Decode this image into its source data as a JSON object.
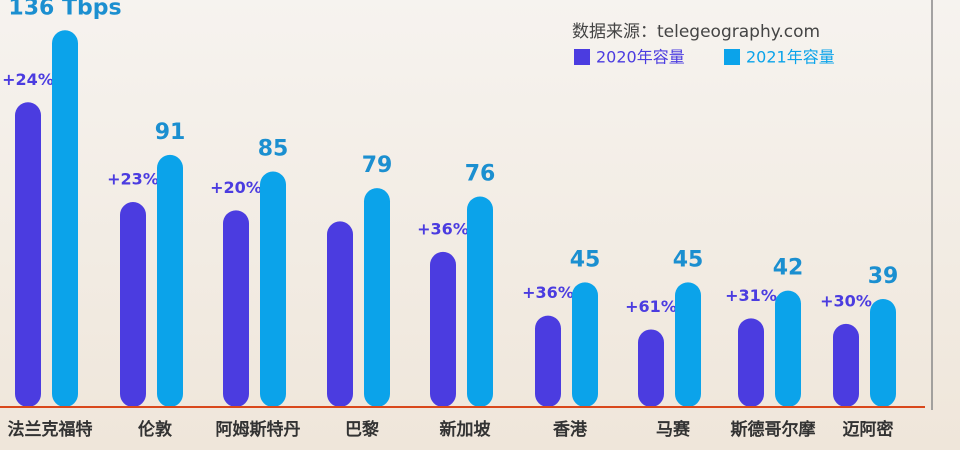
{
  "chart_data": {
    "type": "bar",
    "source": "数据来源：telegeography.com",
    "categories": [
      "法兰克福特",
      "伦敦",
      "阿姆斯特丹",
      "巴黎",
      "新加坡",
      "香港",
      "马赛",
      "斯德哥尔摩",
      "迈阿密"
    ],
    "series": [
      {
        "name": "2020年容量",
        "color": "#4b3ce0",
        "values": [
          110,
          74,
          71,
          67,
          56,
          33,
          28,
          32,
          30
        ],
        "value_labels": [
          "+24%",
          "+23%",
          "+20%",
          null,
          "+36%",
          "+36%",
          "+61%",
          "+31%",
          "+30%"
        ]
      },
      {
        "name": "2021年容量",
        "color": "#0ba3ea",
        "values": [
          136,
          91,
          85,
          79,
          76,
          45,
          45,
          42,
          39
        ],
        "value_labels": [
          "136 Tbps",
          "91",
          "85",
          "79",
          "76",
          "45",
          "45",
          "42",
          "39"
        ]
      }
    ]
  }
}
